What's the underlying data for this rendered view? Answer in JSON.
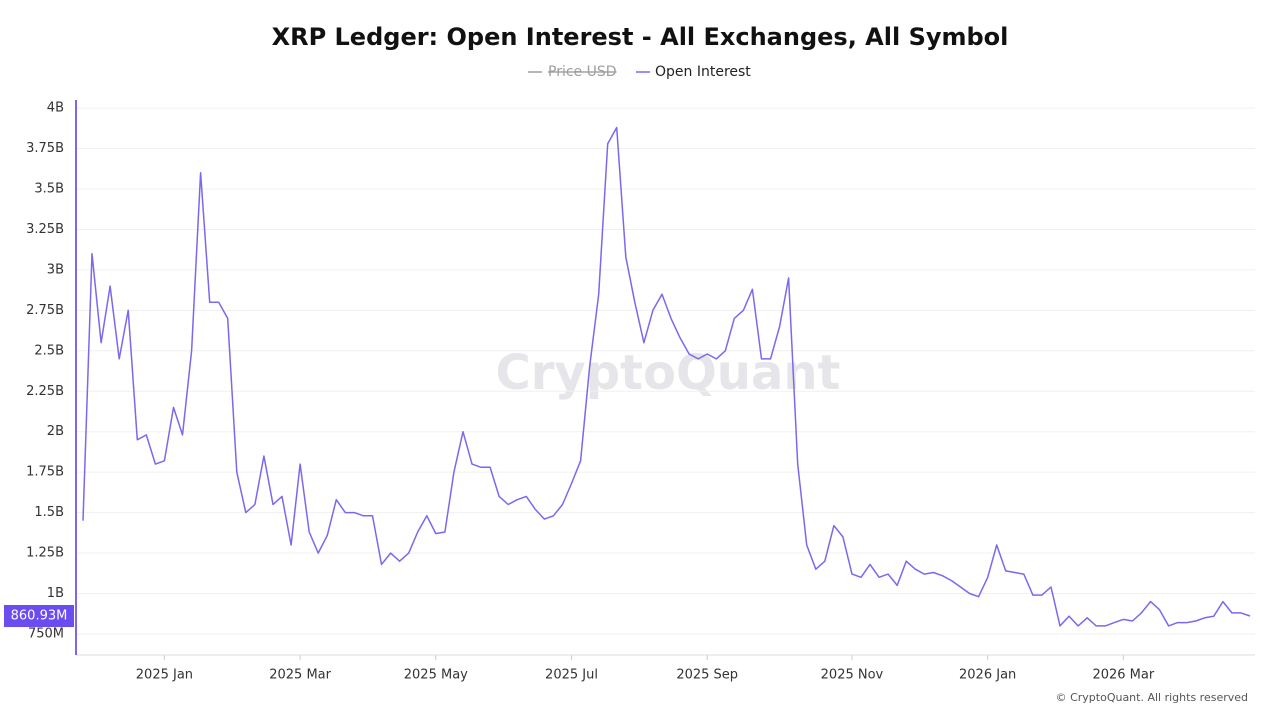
{
  "chart_data": {
    "type": "line",
    "title": "XRP Ledger: Open Interest - All Exchanges, All Symbol",
    "watermark": "CryptoQuant",
    "footer": "© CryptoQuant. All rights reserved",
    "hidden_series": [
      {
        "name": "Price USD",
        "color": "#9e9e9e"
      }
    ],
    "last_value_label": "860.93M",
    "grid": true,
    "categories": [
      null,
      null,
      null,
      null,
      null,
      null,
      null,
      null,
      null,
      "2025 Jan",
      null,
      null,
      null,
      null,
      null,
      null,
      null,
      null,
      null,
      null,
      null,
      null,
      null,
      null,
      "2025 Mar",
      null,
      null,
      null,
      null,
      null,
      null,
      null,
      null,
      null,
      null,
      null,
      null,
      null,
      null,
      "2025 May",
      null,
      null,
      null,
      null,
      null,
      null,
      null,
      null,
      null,
      null,
      null,
      null,
      null,
      null,
      "2025 Jul",
      null,
      null,
      null,
      null,
      null,
      null,
      null,
      null,
      null,
      null,
      null,
      null,
      null,
      null,
      "2025 Sep",
      null,
      null,
      null,
      null,
      null,
      null,
      null,
      null,
      null,
      null,
      null,
      null,
      null,
      null,
      null,
      "2025 Nov",
      null,
      null,
      null,
      null,
      null,
      null,
      null,
      null,
      null,
      null,
      null,
      null,
      null,
      null,
      "2026 Jan",
      null,
      null,
      null,
      null,
      null,
      null,
      null,
      null,
      null,
      null,
      null,
      null,
      null,
      null,
      "2026 Mar",
      null,
      null,
      null,
      null,
      null,
      null,
      null,
      null,
      null,
      null,
      null,
      null,
      null,
      null
    ],
    "series": [
      {
        "name": "Open Interest",
        "color": "#7b68ee",
        "values": [
          1450000000,
          3100000000,
          2550000000,
          2900000000,
          2450000000,
          2750000000,
          1950000000,
          1980000000,
          1800000000,
          1820000000,
          2150000000,
          1980000000,
          2500000000,
          3600000000,
          2800000000,
          2800000000,
          2700000000,
          1750000000,
          1500000000,
          1550000000,
          1850000000,
          1550000000,
          1600000000,
          1300000000,
          1800000000,
          1380000000,
          1250000000,
          1360000000,
          1580000000,
          1500000000,
          1500000000,
          1480000000,
          1480000000,
          1180000000,
          1250000000,
          1200000000,
          1250000000,
          1380000000,
          1480000000,
          1370000000,
          1380000000,
          1750000000,
          2000000000,
          1800000000,
          1780000000,
          1780000000,
          1600000000,
          1550000000,
          1580000000,
          1600000000,
          1520000000,
          1460000000,
          1480000000,
          1550000000,
          1680000000,
          1820000000,
          2400000000,
          2850000000,
          3780000000,
          3880000000,
          3080000000,
          2800000000,
          2550000000,
          2750000000,
          2850000000,
          2700000000,
          2580000000,
          2480000000,
          2450000000,
          2480000000,
          2450000000,
          2500000000,
          2700000000,
          2750000000,
          2880000000,
          2450000000,
          2450000000,
          2650000000,
          2950000000,
          1800000000,
          1300000000,
          1150000000,
          1200000000,
          1420000000,
          1350000000,
          1120000000,
          1100000000,
          1180000000,
          1100000000,
          1120000000,
          1050000000,
          1200000000,
          1150000000,
          1120000000,
          1130000000,
          1110000000,
          1080000000,
          1040000000,
          1000000000,
          980000000,
          1100000000,
          1300000000,
          1140000000,
          1130000000,
          1120000000,
          990000000,
          990000000,
          1040000000,
          800000000,
          860000000,
          800000000,
          850000000,
          800000000,
          800000000,
          820000000,
          840000000,
          830000000,
          880000000,
          950000000,
          900000000,
          800000000,
          820000000,
          820000000,
          830000000,
          850000000,
          860000000,
          950000000,
          880000000,
          880000000,
          860930000
        ]
      }
    ],
    "ylim": [
      620000000,
      4050000000
    ],
    "yticks": [
      {
        "value": 750000000,
        "label": "750M"
      },
      {
        "value": 1000000000,
        "label": "1B"
      },
      {
        "value": 1250000000,
        "label": "1.25B"
      },
      {
        "value": 1500000000,
        "label": "1.5B"
      },
      {
        "value": 1750000000,
        "label": "1.75B"
      },
      {
        "value": 2000000000,
        "label": "2B"
      },
      {
        "value": 2250000000,
        "label": "2.25B"
      },
      {
        "value": 2500000000,
        "label": "2.5B"
      },
      {
        "value": 2750000000,
        "label": "2.75B"
      },
      {
        "value": 3000000000,
        "label": "3B"
      },
      {
        "value": 3250000000,
        "label": "3.25B"
      },
      {
        "value": 3500000000,
        "label": "3.5B"
      },
      {
        "value": 3750000000,
        "label": "3.75B"
      },
      {
        "value": 4000000000,
        "label": "4B"
      }
    ]
  }
}
